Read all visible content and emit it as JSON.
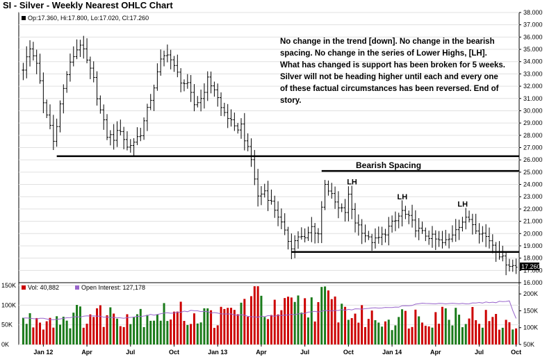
{
  "chart_data": [
    {
      "type": "ohlc",
      "title": "SI - Silver - Weekly Nearest OHLC Chart",
      "legend": {
        "swatch_color": "#000000",
        "text": "Op:17.360, Hi:17.800, Lo:17.020, Cl:17.260"
      },
      "ylim": [
        16.0,
        38.0
      ],
      "y_ticks": [
        "16.000",
        "17.000",
        "18.000",
        "19.000",
        "20.000",
        "21.000",
        "22.000",
        "23.000",
        "24.000",
        "25.000",
        "26.000",
        "27.000",
        "28.000",
        "29.000",
        "30.000",
        "31.000",
        "32.000",
        "33.000",
        "34.000",
        "35.000",
        "36.000",
        "37.000",
        "38.000"
      ],
      "last_price_label": "17.260",
      "x_ticks": [
        "Jan 12",
        "Apr",
        "Jul",
        "Oct",
        "Jan 13",
        "Apr",
        "Jul",
        "Oct",
        "Jan 14",
        "Apr",
        "Jul",
        "Oct"
      ],
      "weeks": 148,
      "close_anchors": [
        [
          0,
          33.5
        ],
        [
          2,
          35.0
        ],
        [
          4,
          34.0
        ],
        [
          6,
          30.5
        ],
        [
          8,
          28.8
        ],
        [
          9,
          27.5
        ],
        [
          11,
          30.5
        ],
        [
          13,
          33.0
        ],
        [
          15,
          34.5
        ],
        [
          17,
          35.5
        ],
        [
          19,
          34.0
        ],
        [
          21,
          32.5
        ],
        [
          23,
          30.0
        ],
        [
          25,
          28.0
        ],
        [
          27,
          27.8
        ],
        [
          29,
          28.5
        ],
        [
          31,
          27.0
        ],
        [
          33,
          27.5
        ],
        [
          35,
          28.2
        ],
        [
          37,
          30.0
        ],
        [
          39,
          32.0
        ],
        [
          41,
          34.0
        ],
        [
          43,
          34.8
        ],
        [
          45,
          33.5
        ],
        [
          47,
          32.5
        ],
        [
          49,
          32.0
        ],
        [
          51,
          30.5
        ],
        [
          53,
          31.0
        ],
        [
          55,
          32.5
        ],
        [
          57,
          31.8
        ],
        [
          59,
          30.2
        ],
        [
          61,
          29.5
        ],
        [
          63,
          28.5
        ],
        [
          65,
          28.8
        ],
        [
          67,
          26.8
        ],
        [
          68,
          26.0
        ],
        [
          70,
          23.0
        ],
        [
          72,
          23.5
        ],
        [
          74,
          22.5
        ],
        [
          76,
          21.5
        ],
        [
          78,
          20.0
        ],
        [
          80,
          19.0
        ],
        [
          82,
          19.8
        ],
        [
          84,
          19.5
        ],
        [
          86,
          20.5
        ],
        [
          88,
          20.0
        ],
        [
          90,
          24.2
        ],
        [
          92,
          23.0
        ],
        [
          94,
          22.0
        ],
        [
          96,
          21.8
        ],
        [
          97,
          23.0
        ],
        [
          99,
          21.0
        ],
        [
          101,
          20.3
        ],
        [
          103,
          19.5
        ],
        [
          105,
          19.4
        ],
        [
          107,
          19.8
        ],
        [
          109,
          20.5
        ],
        [
          111,
          21.0
        ],
        [
          113,
          21.8
        ],
        [
          115,
          21.2
        ],
        [
          117,
          20.5
        ],
        [
          119,
          20.0
        ],
        [
          121,
          19.8
        ],
        [
          123,
          19.5
        ],
        [
          125,
          19.2
        ],
        [
          127,
          19.5
        ],
        [
          129,
          20.5
        ],
        [
          131,
          21.0
        ],
        [
          133,
          21.2
        ],
        [
          135,
          20.5
        ],
        [
          137,
          20.0
        ],
        [
          139,
          19.5
        ],
        [
          141,
          18.8
        ],
        [
          143,
          17.9
        ],
        [
          145,
          17.5
        ],
        [
          147,
          17.26
        ]
      ],
      "support_lines": [
        {
          "y": 26.3,
          "from_week": 10,
          "to_week": "end"
        },
        {
          "y": 18.5,
          "from_week": 80,
          "to_week": "end"
        },
        {
          "y": 25.1,
          "from_week": 89,
          "to_week": "end"
        }
      ],
      "annotations": {
        "commentary": [
          "No change in the trend [down].  No change in the bearish",
          "spacing.  No change in the series of Lower Highs, [LH].",
          "What has changed is support has been broken for 5 weeks.",
          "Silver will not be heading higher until each and every one",
          "of these factual circumstances has been reversed.  End of",
          "story."
        ],
        "bearish_spacing": "Bearish Spacing",
        "lower_highs": [
          {
            "text": "LH",
            "week": 98,
            "price": 24.0
          },
          {
            "text": "LH",
            "week": 113,
            "price": 22.8
          },
          {
            "text": "LH",
            "week": 131,
            "price": 22.2
          }
        ]
      }
    },
    {
      "type": "bar+line",
      "legend": [
        {
          "color": "#cc0000",
          "text": "Vol: 40,882"
        },
        {
          "color": "#9966cc",
          "text": "Open Interest: 127,178"
        }
      ],
      "left_ticks": [
        "150K",
        "100K",
        "50K",
        "0K"
      ],
      "left_range": [
        0,
        150000
      ],
      "right_ticks": [
        "200K",
        "150K",
        "100K",
        "50K"
      ],
      "right_range": [
        50000,
        225000
      ],
      "volume_up_color": "#1a7a1a",
      "volume_down_color": "#cc0000",
      "open_interest_color": "#9966cc",
      "volume_anchors": [
        [
          0,
          60000
        ],
        [
          20,
          75000
        ],
        [
          40,
          80000
        ],
        [
          60,
          70000
        ],
        [
          66,
          100000
        ],
        [
          70,
          120000
        ],
        [
          74,
          80000
        ],
        [
          90,
          110000
        ],
        [
          100,
          70000
        ],
        [
          110,
          65000
        ],
        [
          120,
          75000
        ],
        [
          130,
          80000
        ],
        [
          140,
          60000
        ],
        [
          147,
          40882
        ]
      ],
      "open_interest_anchors": [
        [
          0,
          128000
        ],
        [
          10,
          125000
        ],
        [
          20,
          135000
        ],
        [
          30,
          128000
        ],
        [
          40,
          140000
        ],
        [
          50,
          150000
        ],
        [
          60,
          142000
        ],
        [
          70,
          132000
        ],
        [
          80,
          138000
        ],
        [
          90,
          150000
        ],
        [
          100,
          155000
        ],
        [
          110,
          160000
        ],
        [
          120,
          172000
        ],
        [
          130,
          170000
        ],
        [
          140,
          175000
        ],
        [
          145,
          178000
        ],
        [
          147,
          127178
        ]
      ]
    }
  ]
}
